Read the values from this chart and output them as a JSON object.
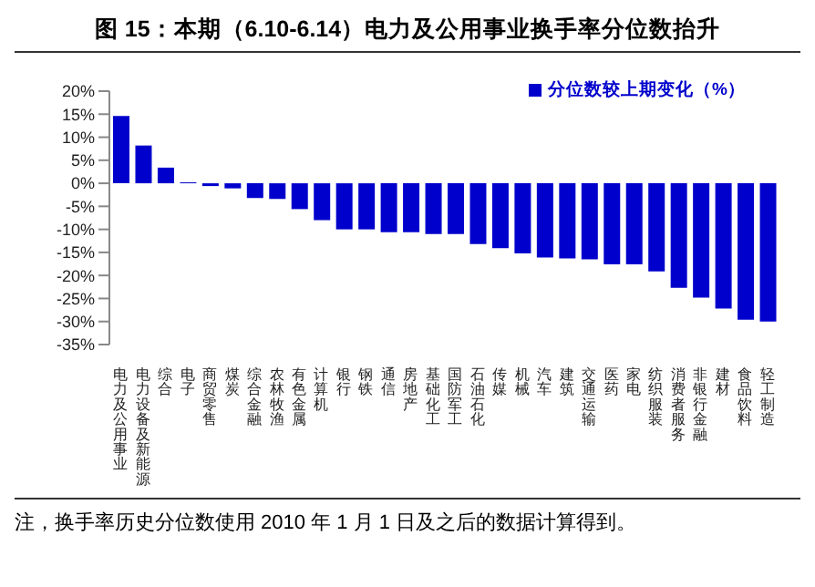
{
  "chart_data": {
    "type": "bar",
    "title": "图 15：本期（6.10-6.14）电力及公用事业换手率分位数抬升",
    "categories": [
      "电力及公用事业",
      "电力设备及新能源",
      "综合",
      "电子",
      "商贸零售",
      "煤炭",
      "综合金融",
      "农林牧渔",
      "有色金属",
      "计算机",
      "银行",
      "钢铁",
      "通信",
      "房地产",
      "基础化工",
      "国防军工",
      "石油石化",
      "传媒",
      "机械",
      "汽车",
      "建筑",
      "交通运输",
      "医药",
      "家电",
      "纺织服装",
      "消费者服务",
      "非银行金融",
      "建材",
      "食品饮料",
      "轻工制造"
    ],
    "series": [
      {
        "name": "分位数较上期变化（%）",
        "color": "#0000cc",
        "values": [
          14.6,
          8.2,
          3.4,
          0.2,
          -0.6,
          -1.1,
          -3.2,
          -3.4,
          -5.6,
          -8.0,
          -10.0,
          -10.0,
          -10.6,
          -10.6,
          -11.0,
          -11.0,
          -13.2,
          -14.1,
          -15.2,
          -16.1,
          -16.3,
          -16.5,
          -17.6,
          -17.6,
          -19.1,
          -22.7,
          -24.8,
          -27.2,
          -29.6,
          -30.0
        ]
      }
    ],
    "ylim": [
      -35,
      20
    ],
    "yticks": [
      {
        "value": -35,
        "label": "-35%"
      },
      {
        "value": -30,
        "label": "-30%"
      },
      {
        "value": -25,
        "label": "-25%"
      },
      {
        "value": -20,
        "label": "-20%"
      },
      {
        "value": -15,
        "label": "-15%"
      },
      {
        "value": -10,
        "label": "-10%"
      },
      {
        "value": -5,
        "label": "-5%"
      },
      {
        "value": 0,
        "label": "0%"
      },
      {
        "value": 5,
        "label": "5%"
      },
      {
        "value": 10,
        "label": "10%"
      },
      {
        "value": 15,
        "label": "15%"
      },
      {
        "value": 20,
        "label": "20%"
      }
    ],
    "grid": false,
    "legend": "top right",
    "annotations": [
      "注，换手率历史分位数使用 2010 年 1 月 1 日及之后的数据计算得到。"
    ]
  }
}
